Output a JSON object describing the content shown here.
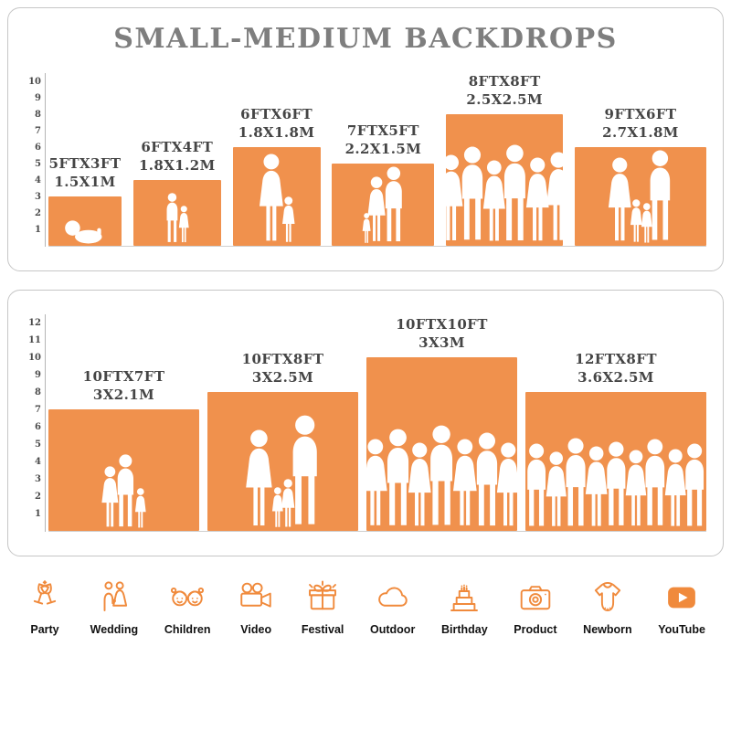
{
  "title": "SMALL-MEDIUM BACKDROPS",
  "accent": "#F0914D",
  "icon_color": "#F08A3C",
  "chart_data": [
    {
      "type": "bar",
      "title": "SMALL-MEDIUM BACKDROPS",
      "categories": [
        "5FTX3FT",
        "6FTX4FT",
        "6FTX6FT",
        "7FTX5FT",
        "8FTX8FT",
        "9FTX6FT"
      ],
      "labels_m": [
        "1.5X1M",
        "1.8X1.2M",
        "1.8X1.8M",
        "2.2X1.5M",
        "2.5X2.5M",
        "2.7X1.8M"
      ],
      "width_ft": [
        5,
        6,
        6,
        7,
        8,
        9
      ],
      "height_ft": [
        3,
        4,
        6,
        5,
        8,
        6
      ],
      "ylim": [
        0,
        10
      ],
      "yticks": [
        1,
        2,
        3,
        4,
        5,
        6,
        7,
        8,
        9,
        10
      ],
      "figures": [
        [
          [
            "b",
            0.52
          ]
        ],
        [
          [
            "m",
            0.78
          ],
          [
            "f",
            0.58
          ]
        ],
        [
          [
            "f",
            0.92
          ],
          [
            "f",
            0.48
          ]
        ],
        [
          [
            "f",
            0.38
          ],
          [
            "f",
            0.82
          ],
          [
            "m",
            0.95
          ]
        ],
        [
          [
            "f",
            0.68
          ],
          [
            "m",
            0.74
          ],
          [
            "f",
            0.64
          ],
          [
            "m",
            0.76
          ],
          [
            "f",
            0.66
          ],
          [
            "f",
            0.7
          ]
        ],
        [
          [
            "f",
            0.88
          ],
          [
            "f",
            0.45
          ],
          [
            "f",
            0.42
          ],
          [
            "m",
            0.95
          ]
        ]
      ]
    },
    {
      "type": "bar",
      "title": "",
      "categories": [
        "10FTX7FT",
        "10FTX8FT",
        "10FTX10FT",
        "12FTX8FT"
      ],
      "labels_m": [
        "3X2.1M",
        "3X2.5M",
        "3X3M",
        "3.6X2.5M"
      ],
      "width_ft": [
        10,
        10,
        10,
        12
      ],
      "height_ft": [
        7,
        8,
        10,
        8
      ],
      "ylim": [
        0,
        12
      ],
      "yticks": [
        1,
        2,
        3,
        4,
        5,
        6,
        7,
        8,
        9,
        10,
        11,
        12
      ],
      "figures": [
        [
          [
            "f",
            0.52
          ],
          [
            "m",
            0.62
          ],
          [
            "f",
            0.34
          ]
        ],
        [
          [
            "f",
            0.72
          ],
          [
            "f",
            0.3
          ],
          [
            "f",
            0.36
          ],
          [
            "m",
            0.82
          ]
        ],
        [
          [
            "f",
            0.52
          ],
          [
            "m",
            0.58
          ],
          [
            "f",
            0.5
          ],
          [
            "m",
            0.6
          ],
          [
            "f",
            0.52
          ],
          [
            "m",
            0.56
          ],
          [
            "f",
            0.5
          ]
        ],
        [
          [
            "m",
            0.62
          ],
          [
            "f",
            0.56
          ],
          [
            "m",
            0.66
          ],
          [
            "f",
            0.6
          ],
          [
            "m",
            0.63
          ],
          [
            "f",
            0.57
          ],
          [
            "m",
            0.65
          ],
          [
            "f",
            0.58
          ],
          [
            "m",
            0.62
          ]
        ]
      ]
    }
  ],
  "use_cases": [
    {
      "name": "party",
      "label": "Party"
    },
    {
      "name": "wedding",
      "label": "Wedding"
    },
    {
      "name": "children",
      "label": "Children"
    },
    {
      "name": "video",
      "label": "Video"
    },
    {
      "name": "festival",
      "label": "Festival"
    },
    {
      "name": "outdoor",
      "label": "Outdoor"
    },
    {
      "name": "birthday",
      "label": "Birthday"
    },
    {
      "name": "product",
      "label": "Product"
    },
    {
      "name": "newborn",
      "label": "Newborn"
    },
    {
      "name": "youtube",
      "label": "YouTube"
    }
  ]
}
